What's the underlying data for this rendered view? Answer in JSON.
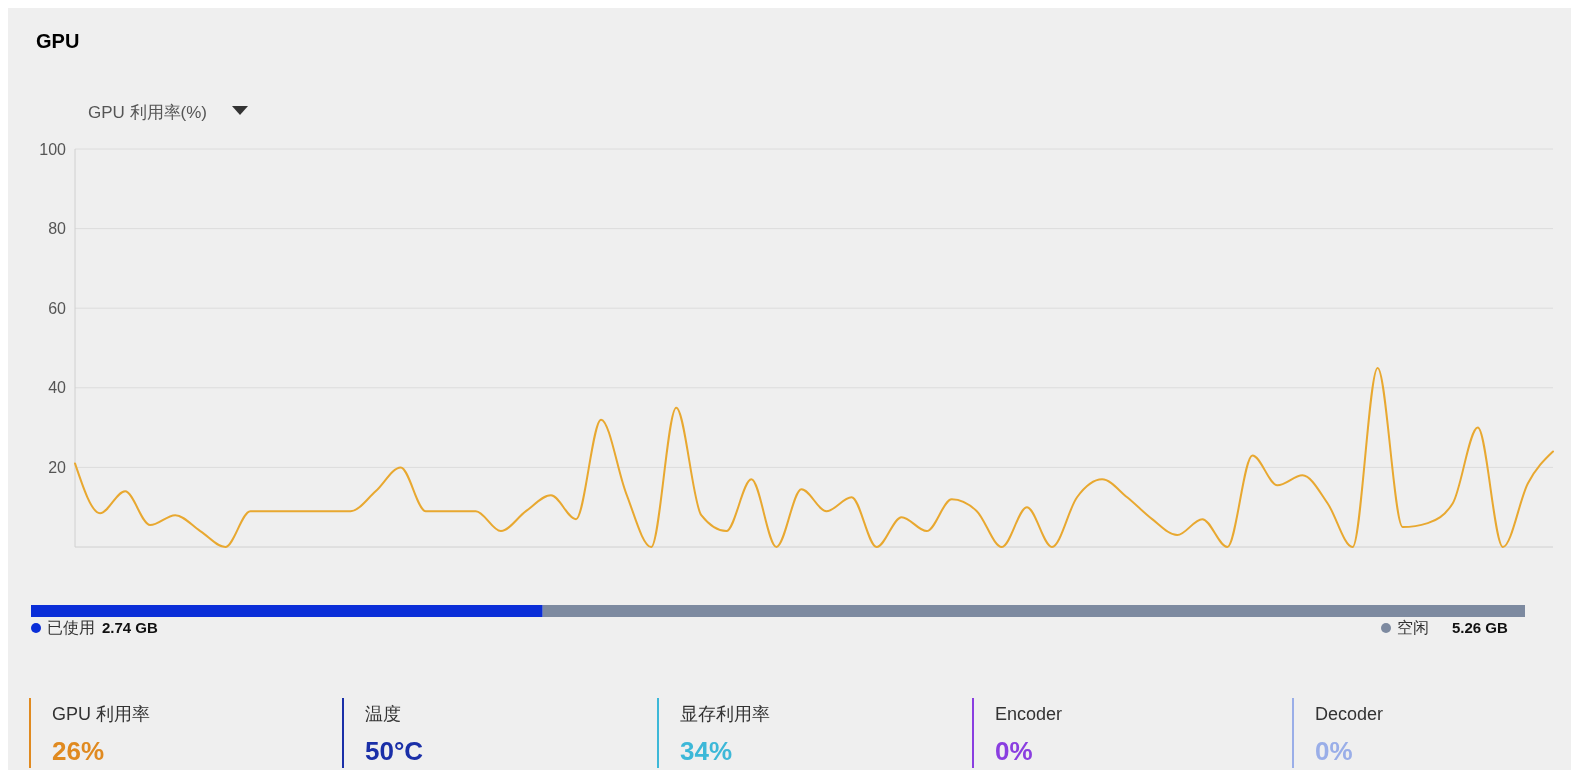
{
  "chart_data": [
    {
      "type": "line",
      "title": "GPU",
      "ylabel": "GPU 利用率(%)",
      "categories": [
        null,
        null,
        null,
        null,
        null,
        null,
        null,
        null,
        null,
        null,
        null,
        null,
        null,
        null,
        null,
        null,
        null,
        null,
        null,
        null,
        null,
        null,
        null,
        null,
        null,
        null,
        null,
        null,
        null,
        null,
        null,
        null,
        null,
        null,
        null,
        null,
        null,
        null,
        null,
        null,
        null,
        null,
        null,
        null,
        null,
        null,
        null,
        null,
        null,
        null,
        null,
        null,
        null,
        null,
        null,
        null,
        null,
        null,
        null,
        null
      ],
      "series": [
        {
          "color": "#e8a830",
          "values": [
            21,
            8.5,
            14,
            5.5,
            8,
            4,
            0,
            9,
            9,
            9,
            9,
            9,
            14,
            20,
            9,
            9,
            9,
            4,
            9,
            13,
            7,
            32,
            13.5,
            0,
            35,
            8,
            4,
            17,
            0,
            14.5,
            9,
            12.5,
            0,
            7.5,
            4,
            12,
            9,
            0,
            10,
            0,
            12.5,
            17,
            12.5,
            7,
            3,
            7,
            0,
            23,
            15.5,
            18,
            11,
            0,
            45,
            5,
            6,
            11,
            30,
            0,
            16,
            24
          ]
        }
      ],
      "ylim": [
        0,
        100
      ],
      "yticks": [
        20,
        40,
        60,
        80,
        100
      ],
      "grid": "y",
      "marker": "none",
      "line_style": "solid"
    },
    {
      "type": "bar",
      "orientation": "horizontal",
      "stacked": true,
      "categories": [
        null
      ],
      "legend": "bottom",
      "series": [
        {
          "name": "已使用",
          "color": "#0a2ed8",
          "values": [
            2.74
          ],
          "value_labels": [
            "2.74 GB"
          ]
        },
        {
          "name": "空闲",
          "color": "#7d8aa0",
          "values": [
            5.26
          ],
          "value_labels": [
            "5.26 GB"
          ]
        }
      ]
    },
    {
      "type": "other",
      "categories": [
        "GPU 利用率",
        "温度",
        "显存利用率",
        "Encoder",
        "Decoder"
      ],
      "value_labels": [
        "26%",
        "50°C",
        "34%",
        "0%",
        "0%"
      ],
      "colors": [
        "#e08a20",
        "#1a2fa8",
        "#3db8d8",
        "#8a3ee0",
        "#9aaee8"
      ]
    }
  ]
}
